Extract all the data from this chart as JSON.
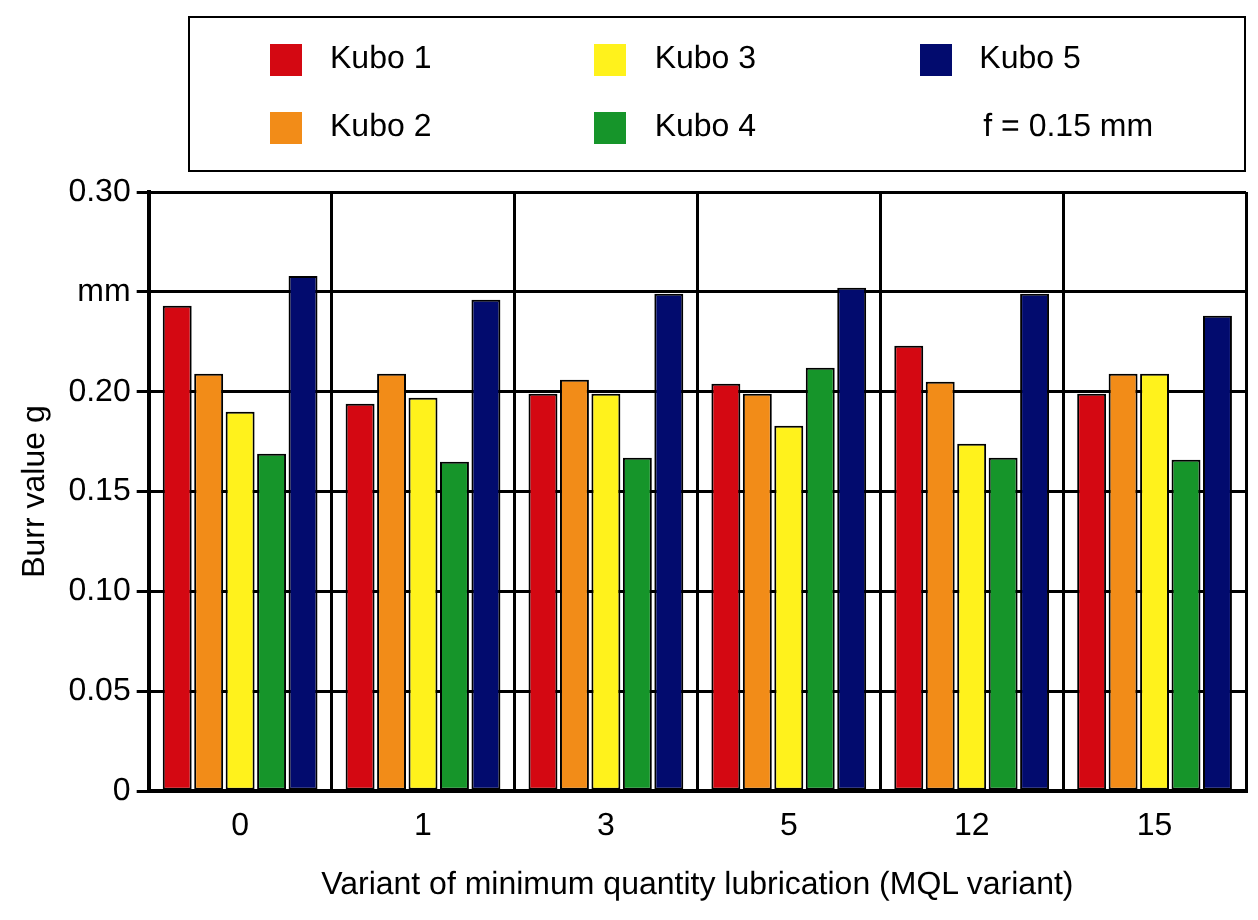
{
  "chart_data": {
    "type": "bar",
    "xlabel": "Variant of minimum quantity lubrication (MQL variant)",
    "ylabel": "Burr value g",
    "categories": [
      "0",
      "1",
      "3",
      "5",
      "12",
      "15"
    ],
    "series": [
      {
        "name": "Kubo 1",
        "color": "#d40812",
        "values": [
          0.243,
          0.194,
          0.199,
          0.204,
          0.223,
          0.199
        ]
      },
      {
        "name": "Kubo 2",
        "color": "#f28c18",
        "values": [
          0.209,
          0.209,
          0.206,
          0.199,
          0.205,
          0.209
        ]
      },
      {
        "name": "Kubo 3",
        "color": "#fff21c",
        "values": [
          0.19,
          0.197,
          0.199,
          0.183,
          0.174,
          0.209
        ]
      },
      {
        "name": "Kubo 4",
        "color": "#16952a",
        "values": [
          0.169,
          0.165,
          0.167,
          0.212,
          0.167,
          0.166
        ]
      },
      {
        "name": "Kubo 5",
        "color": "#020b6e",
        "values": [
          0.258,
          0.246,
          0.249,
          0.252,
          0.249,
          0.238
        ]
      }
    ],
    "ylim": [
      0,
      0.3
    ],
    "yticks": [
      0,
      {
        "value": 0.05,
        "label": "0.05"
      },
      {
        "value": 0.1,
        "label": "0.10"
      },
      {
        "value": 0.15,
        "label": "0.15"
      },
      {
        "value": 0.2,
        "label": "0.20"
      },
      {
        "value": 0.25,
        "label": "mm"
      },
      {
        "value": 0.3,
        "label": "0.30"
      }
    ],
    "grid": true,
    "legend": "top",
    "annotations": [
      "f = 0.15 mm"
    ]
  }
}
